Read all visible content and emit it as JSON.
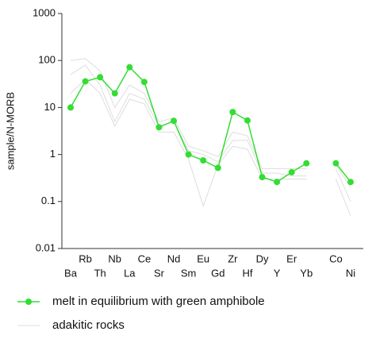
{
  "chart_data": {
    "type": "line",
    "log_y": true,
    "y_label": "sample/N-MORB",
    "categories": [
      "Ba",
      "Rb",
      "Th",
      "Nb",
      "La",
      "Ce",
      "Sr",
      "Nd",
      "Sm",
      "Eu",
      "Gd",
      "Zr",
      "Hf",
      "Dy",
      "Y",
      "Er",
      "Yb",
      null,
      "Co",
      "Ni"
    ],
    "ylim": [
      0.01,
      1000
    ],
    "yticks": [
      0.01,
      0.1,
      1,
      10,
      100,
      1000
    ],
    "series": [
      {
        "name": "melt in equilibrium with green amphibole",
        "color": "#33dd33",
        "values": [
          10,
          36,
          44,
          20,
          72,
          35,
          3.8,
          5.2,
          1.0,
          0.75,
          0.52,
          8,
          5.3,
          0.33,
          0.26,
          0.42,
          0.65,
          null,
          0.65,
          0.26
        ]
      },
      {
        "name": "adakitic rocks",
        "color": "#dddddd",
        "lines": [
          [
            100,
            110,
            60,
            10,
            30,
            20,
            5,
            6,
            1.5,
            1.2,
            0.9,
            3,
            2.5,
            0.5,
            0.5,
            0.5,
            0.5,
            null,
            0.6,
            0.2
          ],
          [
            50,
            80,
            30,
            5,
            20,
            15,
            4,
            5,
            1.2,
            1,
            0.7,
            2,
            2,
            0.4,
            0.4,
            0.35,
            0.35,
            null,
            0.5,
            0.1
          ],
          [
            20,
            40,
            20,
            4,
            15,
            12,
            3,
            3,
            0.8,
            0.08,
            0.6,
            1.5,
            1.3,
            0.3,
            0.3,
            0.3,
            0.3,
            null,
            0.3,
            0.05
          ]
        ]
      }
    ]
  }
}
